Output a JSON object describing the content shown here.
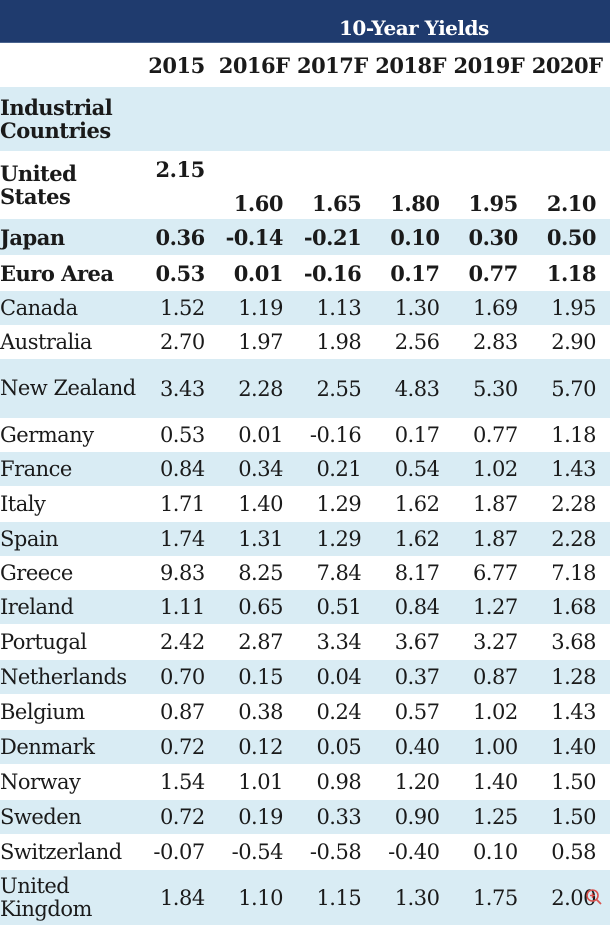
{
  "chart_data": {
    "type": "table",
    "title": "10-Year Yields",
    "columns": [
      "2015",
      "2016F",
      "2017F",
      "2018F",
      "2019F",
      "2020F"
    ],
    "rows": [
      {
        "label": "Industrial Countries",
        "values": [
          "",
          "",
          "",
          "",
          "",
          ""
        ]
      },
      {
        "label": "United States",
        "values": [
          "2.15",
          "1.60",
          "1.65",
          "1.80",
          "1.95",
          "2.10"
        ]
      },
      {
        "label": "Japan",
        "values": [
          "0.36",
          "-0.14",
          "-0.21",
          "0.10",
          "0.30",
          "0.50"
        ]
      },
      {
        "label": "Euro Area",
        "values": [
          "0.53",
          "0.01",
          "-0.16",
          "0.17",
          "0.77",
          "1.18"
        ]
      },
      {
        "label": "Canada",
        "values": [
          "1.52",
          "1.19",
          "1.13",
          "1.30",
          "1.69",
          "1.95"
        ]
      },
      {
        "label": "Australia",
        "values": [
          "2.70",
          "1.97",
          "1.98",
          "2.56",
          "2.83",
          "2.90"
        ]
      },
      {
        "label": "New Zealand",
        "values": [
          "3.43",
          "2.28",
          "2.55",
          "4.83",
          "5.30",
          "5.70"
        ]
      },
      {
        "label": "Germany",
        "values": [
          "0.53",
          "0.01",
          "-0.16",
          "0.17",
          "0.77",
          "1.18"
        ]
      },
      {
        "label": "France",
        "values": [
          "0.84",
          "0.34",
          "0.21",
          "0.54",
          "1.02",
          "1.43"
        ]
      },
      {
        "label": "Italy",
        "values": [
          "1.71",
          "1.40",
          "1.29",
          "1.62",
          "1.87",
          "2.28"
        ]
      },
      {
        "label": "Spain",
        "values": [
          "1.74",
          "1.31",
          "1.29",
          "1.62",
          "1.87",
          "2.28"
        ]
      },
      {
        "label": "Greece",
        "values": [
          "9.83",
          "8.25",
          "7.84",
          "8.17",
          "6.77",
          "7.18"
        ]
      },
      {
        "label": "Ireland",
        "values": [
          "1.11",
          "0.65",
          "0.51",
          "0.84",
          "1.27",
          "1.68"
        ]
      },
      {
        "label": "Portugal",
        "values": [
          "2.42",
          "2.87",
          "3.34",
          "3.67",
          "3.27",
          "3.68"
        ]
      },
      {
        "label": "Netherlands",
        "values": [
          "0.70",
          "0.15",
          "0.04",
          "0.37",
          "0.87",
          "1.28"
        ]
      },
      {
        "label": "Belgium",
        "values": [
          "0.87",
          "0.38",
          "0.24",
          "0.57",
          "1.02",
          "1.43"
        ]
      },
      {
        "label": "Denmark",
        "values": [
          "0.72",
          "0.12",
          "0.05",
          "0.40",
          "1.00",
          "1.40"
        ]
      },
      {
        "label": "Norway",
        "values": [
          "1.54",
          "1.01",
          "0.98",
          "1.20",
          "1.40",
          "1.50"
        ]
      },
      {
        "label": "Sweden",
        "values": [
          "0.72",
          "0.19",
          "0.33",
          "0.90",
          "1.25",
          "1.50"
        ]
      },
      {
        "label": "Switzerland",
        "values": [
          "-0.07",
          "-0.54",
          "-0.58",
          "-0.40",
          "0.10",
          "0.58"
        ]
      },
      {
        "label": "United Kingdom",
        "values": [
          "1.84",
          "1.10",
          "1.15",
          "1.30",
          "1.75",
          "2.00"
        ]
      }
    ]
  },
  "colors": {
    "header_band": "#1f3b6e",
    "stripe": "#d9ecf4",
    "text": "#1a1a1a"
  },
  "icons": {
    "zoom": "zoom-in-icon"
  }
}
